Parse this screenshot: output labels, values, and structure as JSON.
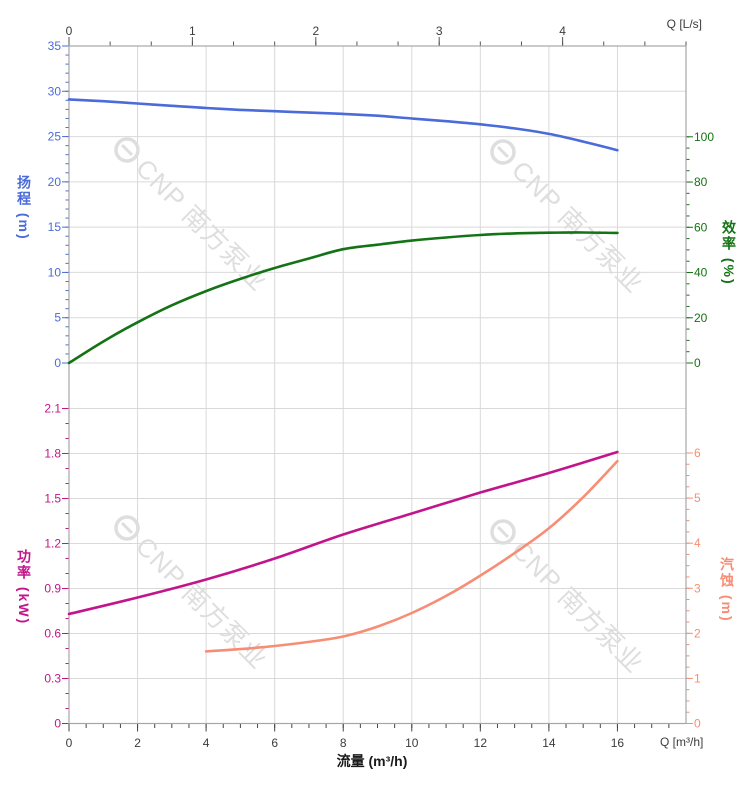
{
  "watermark": {
    "text": "CNP 南方泵业",
    "color": "#dedede",
    "icon": "cnp-logo-icon"
  },
  "chart_data": {
    "type": "line",
    "title": "",
    "grid": true,
    "legend": false,
    "axes": {
      "flow_top": {
        "title": "Q [L/s]",
        "range": [
          0,
          5
        ],
        "major_step": 1,
        "minor_step": 0.33333,
        "tick_labels": [
          "0",
          "1",
          "2",
          "3",
          "4"
        ],
        "color": "#3c3c3c"
      },
      "flow_bottom": {
        "title": "Q [m³/h]",
        "axis_label": "流量 (m³/h)",
        "range": [
          0,
          18
        ],
        "major_step": 2,
        "minor_step": 0.5,
        "tick_labels": [
          "0",
          "2",
          "4",
          "6",
          "8",
          "10",
          "12",
          "14",
          "16"
        ],
        "color": "#3c3c3c"
      },
      "head": {
        "title": "扬程 (m)",
        "range": [
          0,
          35
        ],
        "major_step": 5,
        "minor_step": 1,
        "tick_labels": [
          "35",
          "30",
          "25",
          "20",
          "15",
          "10",
          "5",
          "0"
        ],
        "color": "#4a6bd9"
      },
      "efficiency": {
        "title": "效率 (%)",
        "range": [
          0,
          140
        ],
        "labeled_range": [
          0,
          100
        ],
        "major_step": 20,
        "minor_step": 5,
        "tick_labels": [
          "100",
          "80",
          "60",
          "40",
          "20",
          "0"
        ],
        "color": "#147314"
      },
      "power": {
        "title": "功率 (kW)",
        "range": [
          0,
          2.1
        ],
        "major_step": 0.3,
        "minor_step": 0.1,
        "tick_labels": [
          "2.1",
          "1.8",
          "1.5",
          "1.2",
          "0.9",
          "0.6",
          "0.3",
          "0"
        ],
        "color": "#c2158b"
      },
      "npsh": {
        "title": "汽蚀 (m)",
        "range": [
          0,
          6
        ],
        "major_step": 1,
        "minor_step": 0.25,
        "tick_labels": [
          "6",
          "5",
          "4",
          "3",
          "2",
          "1",
          "0"
        ],
        "color": "#f78d74"
      }
    },
    "panels": [
      {
        "name": "head-efficiency-panel",
        "series": [
          {
            "name": "head-curve",
            "label": "扬程",
            "axis": "head",
            "color": "#4a6bd9",
            "x": [
              0,
              1,
              2,
              3,
              4,
              5,
              6,
              7,
              8,
              9,
              10,
              11,
              12,
              13,
              14,
              15,
              16
            ],
            "y": [
              29.1,
              28.9,
              28.65,
              28.4,
              28.15,
              27.95,
              27.8,
              27.65,
              27.5,
              27.3,
              27.0,
              26.7,
              26.35,
              25.9,
              25.3,
              24.45,
              23.5
            ]
          },
          {
            "name": "efficiency-curve",
            "label": "效率",
            "axis": "efficiency",
            "color": "#147314",
            "x": [
              0,
              1,
              2,
              3,
              4,
              5,
              6,
              7,
              8,
              9,
              10,
              11,
              12,
              13,
              14,
              15,
              16
            ],
            "y": [
              0,
              9.5,
              18,
              25.5,
              31.8,
              37.2,
              42,
              46.2,
              50.3,
              52.3,
              54.1,
              55.5,
              56.6,
              57.3,
              57.6,
              57.7,
              57.5
            ]
          }
        ]
      },
      {
        "name": "power-npsh-panel",
        "series": [
          {
            "name": "power-curve",
            "label": "功率",
            "axis": "power",
            "color": "#c2158b",
            "x": [
              0,
              2,
              4,
              6,
              8,
              10,
              12,
              14,
              16
            ],
            "y": [
              0.73,
              0.84,
              0.96,
              1.1,
              1.26,
              1.4,
              1.54,
              1.67,
              1.81
            ]
          },
          {
            "name": "npsh-curve",
            "label": "汽蚀",
            "axis": "npsh",
            "color": "#f78d74",
            "x": [
              4,
              5,
              6,
              7,
              8,
              9,
              10,
              11,
              12,
              13,
              14,
              15,
              16
            ],
            "y": [
              1.6,
              1.65,
              1.72,
              1.81,
              1.93,
              2.15,
              2.45,
              2.83,
              3.28,
              3.78,
              4.33,
              5.02,
              5.82
            ]
          }
        ]
      }
    ]
  }
}
